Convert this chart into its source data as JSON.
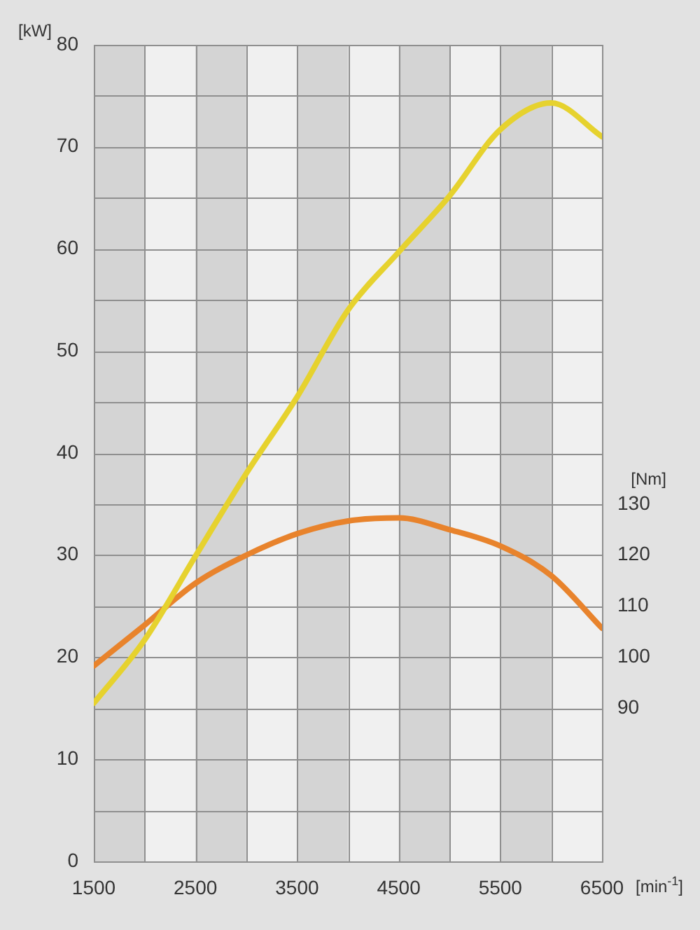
{
  "chart_data": {
    "type": "line",
    "xlabel": "[min$^{-1}$]",
    "ylabel": "[kW]",
    "y2label": "[Nm]",
    "x": [
      1500,
      2000,
      2500,
      3000,
      3500,
      4000,
      4500,
      5000,
      5500,
      6000,
      6500
    ],
    "series": [
      {
        "color": "#e6d22e",
        "values": [
          15.5,
          21.7,
          29.9,
          38,
          45.5,
          54,
          59.7,
          65.2,
          71.7,
          74.3,
          71
        ]
      },
      {
        "color": "#e8832c",
        "axis": "y2",
        "values": [
          98.3,
          106.3,
          114.5,
          120,
          124.2,
          126.7,
          127.3,
          125,
          121.8,
          116,
          105.7
        ]
      }
    ],
    "xlim": [
      1500,
      6500
    ],
    "xticks": [
      1500,
      2500,
      3500,
      4500,
      5500,
      6500
    ],
    "ylim": [
      0,
      80
    ],
    "yticks": [
      0,
      {
        "value": 5,
        "label": null
      },
      10,
      {
        "value": 15,
        "label": null
      },
      20,
      {
        "value": 25,
        "label": null
      },
      30,
      {
        "value": 35,
        "label": null
      },
      40,
      {
        "value": 45,
        "label": null
      },
      50,
      {
        "value": 55,
        "label": null
      },
      60,
      {
        "value": 65,
        "label": null
      },
      70,
      {
        "value": 75,
        "label": null
      },
      80
    ],
    "y2lim": [
      60,
      220
    ],
    "y2ticks": [
      90,
      100,
      110,
      120,
      130
    ],
    "bands": [
      {
        "axis": "x",
        "from": 1500,
        "to": 2000,
        "color": "#d4d4d4"
      },
      {
        "axis": "x",
        "from": 2500,
        "to": 3000,
        "color": "#d4d4d4"
      },
      {
        "axis": "x",
        "from": 3500,
        "to": 4000,
        "color": "#d4d4d4"
      },
      {
        "axis": "x",
        "from": 4500,
        "to": 5000,
        "color": "#d4d4d4"
      },
      {
        "axis": "x",
        "from": 5500,
        "to": 6000,
        "color": "#d4d4d4"
      }
    ],
    "grid": true,
    "legend": false,
    "marker": "none",
    "line_style": "solid"
  }
}
